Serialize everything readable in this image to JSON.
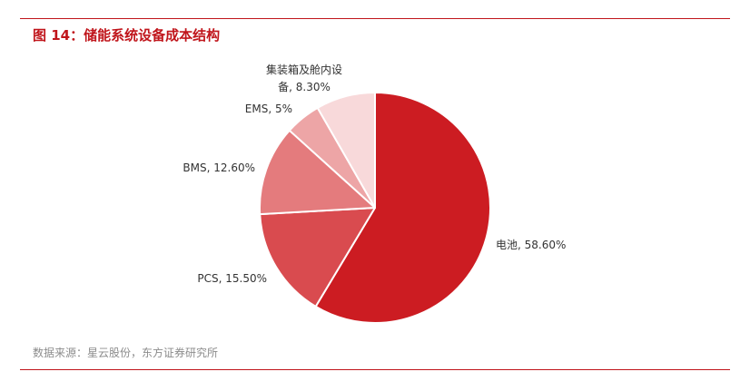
{
  "figure": {
    "title": "图 14：储能系统设备成本结构",
    "source": "数据来源：星云股份，东方证券研究所"
  },
  "colors": {
    "accent": "#c0151b",
    "slices": [
      "#cc1c22",
      "#d94b4f",
      "#e47b7d",
      "#eda5a6",
      "#f8d9da"
    ]
  },
  "chart_data": {
    "type": "pie",
    "title": "",
    "slices": [
      {
        "label": "电池",
        "value": 58.6,
        "display": "电池, 58.60%"
      },
      {
        "label": "PCS",
        "value": 15.5,
        "display": "PCS, 15.50%"
      },
      {
        "label": "BMS",
        "value": 12.6,
        "display": "BMS, 12.60%"
      },
      {
        "label": "EMS",
        "value": 5,
        "display": "EMS, 5%"
      },
      {
        "label": "集装箱及舱内设备",
        "value": 8.3,
        "display_lines": [
          "集装箱及舱内设",
          "备, 8.30%"
        ]
      }
    ],
    "start": "12 o'clock",
    "direction": "clockwise",
    "legend": "none"
  }
}
